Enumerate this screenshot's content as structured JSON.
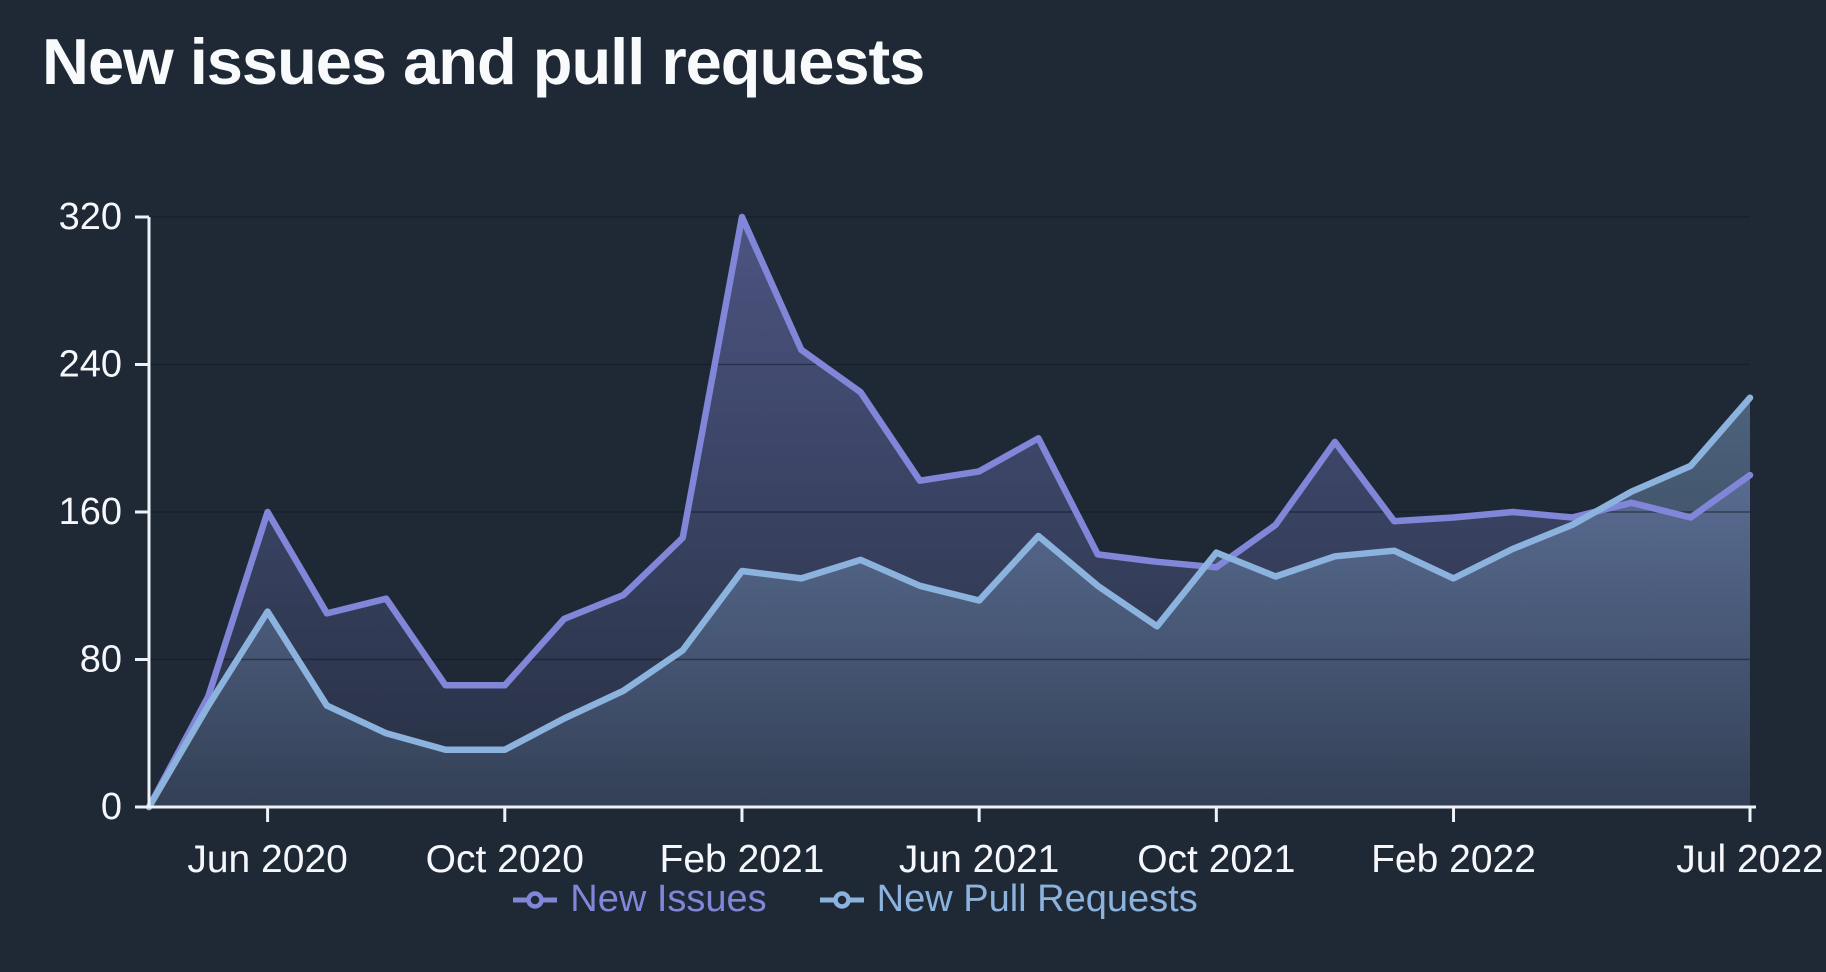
{
  "title": "New issues and pull requests",
  "colors": {
    "background": "#1f2936",
    "axis": "#eef1f5",
    "tick_text": "#f5f7fa",
    "grid": "#121a28",
    "issues": "#8186d9",
    "pull_requests": "#8cb2de"
  },
  "chart_data": {
    "type": "area",
    "title": "New issues and pull requests",
    "x": [
      "Apr 2020",
      "May 2020",
      "Jun 2020",
      "Jul 2020",
      "Aug 2020",
      "Sep 2020",
      "Oct 2020",
      "Nov 2020",
      "Dec 2020",
      "Jan 2021",
      "Feb 2021",
      "Mar 2021",
      "Apr 2021",
      "May 2021",
      "Jun 2021",
      "Jul 2021",
      "Aug 2021",
      "Sep 2021",
      "Oct 2021",
      "Nov 2021",
      "Dec 2021",
      "Jan 2022",
      "Feb 2022",
      "Mar 2022",
      "Apr 2022",
      "May 2022",
      "Jun 2022",
      "Jul 2022"
    ],
    "series": [
      {
        "name": "New Issues",
        "color_key": "issues",
        "values": [
          0,
          60,
          160,
          105,
          113,
          66,
          66,
          102,
          115,
          146,
          320,
          248,
          225,
          177,
          182,
          200,
          137,
          133,
          130,
          153,
          198,
          155,
          157,
          160,
          157,
          165,
          157,
          180
        ]
      },
      {
        "name": "New Pull Requests",
        "color_key": "pull_requests",
        "values": [
          0,
          55,
          106,
          55,
          40,
          31,
          31,
          48,
          63,
          85,
          128,
          124,
          134,
          120,
          112,
          147,
          120,
          98,
          138,
          125,
          136,
          139,
          124,
          140,
          153,
          171,
          185,
          222
        ]
      }
    ],
    "ylim": [
      0,
      320
    ],
    "yticks": [
      0,
      80,
      160,
      240,
      320
    ],
    "xtick_indices": [
      2,
      6,
      10,
      14,
      18,
      22,
      27
    ],
    "xtick_labels": [
      "Jun 2020",
      "Oct 2020",
      "Feb 2021",
      "Jun 2021",
      "Oct 2021",
      "Feb 2022",
      "Jul 2022"
    ],
    "grid": "horizontal",
    "legend_position": "bottom"
  }
}
